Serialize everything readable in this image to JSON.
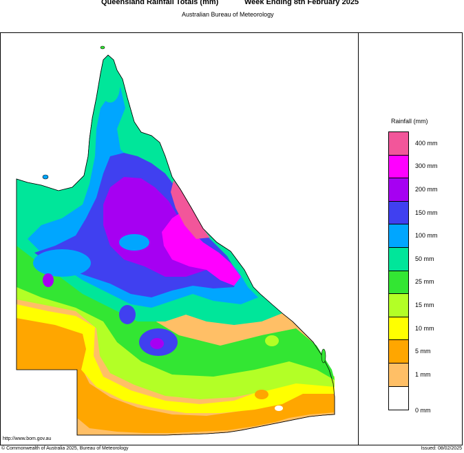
{
  "header": {
    "title": "Queensland Rainfall Totals (mm)",
    "period": "Week Ending 8th February 2025",
    "subtitle": "Australian Bureau of Meteorology"
  },
  "legend": {
    "title": "Rainfall (mm)",
    "items": [
      {
        "label": "400 mm",
        "color": "#f2569a"
      },
      {
        "label": "300 mm",
        "color": "#ff00ff"
      },
      {
        "label": "200 mm",
        "color": "#a600f2"
      },
      {
        "label": "150 mm",
        "color": "#4040f0"
      },
      {
        "label": "100 mm",
        "color": "#00a6ff"
      },
      {
        "label": "50 mm",
        "color": "#00e69a"
      },
      {
        "label": "25 mm",
        "color": "#33e633"
      },
      {
        "label": "15 mm",
        "color": "#b3ff26"
      },
      {
        "label": "10 mm",
        "color": "#ffff00"
      },
      {
        "label": "5 mm",
        "color": "#ffa600"
      },
      {
        "label": "1 mm",
        "color": "#ffbf66"
      },
      {
        "label": "0 mm",
        "color": "#ffffff"
      }
    ]
  },
  "footer": {
    "url": "http://www.bom.gov.au",
    "copyright": "© Commonwealth of Australia 2025, Bureau of Meteorology",
    "issued": "Issued: 08/02/2025"
  }
}
